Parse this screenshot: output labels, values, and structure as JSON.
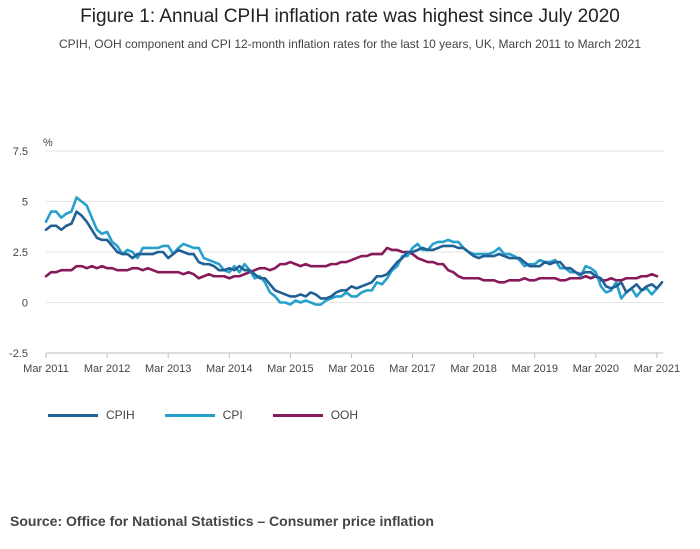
{
  "header": {
    "title": "Figure 1: Annual CPIH inflation rate was highest since July 2020",
    "subtitle": "CPIH, OOH component and CPI 12-month inflation rates for the last 10 years, UK, March 2011 to March 2021"
  },
  "footer": {
    "source": "Source: Office for National Statistics – Consumer price inflation"
  },
  "chart_data": {
    "type": "line",
    "unit_label": "%",
    "ylim": [
      -2.5,
      7.5
    ],
    "y_ticks": [
      -2.5,
      0,
      2.5,
      5,
      7.5
    ],
    "y_tick_labels": [
      "-2.5",
      "0",
      "2.5",
      "5",
      "7.5"
    ],
    "x_tick_labels": [
      "Mar 2011",
      "Mar 2012",
      "Mar 2013",
      "Mar 2014",
      "Mar 2015",
      "Mar 2016",
      "Mar 2017",
      "Mar 2018",
      "Mar 2019",
      "Mar 2020",
      "Mar 2021"
    ],
    "grid": true,
    "legend_position": "bottom-left",
    "series": [
      {
        "name": "CPIH",
        "color": "#206095",
        "values": [
          3.6,
          3.8,
          3.8,
          3.6,
          3.8,
          3.9,
          4.5,
          4.3,
          4.0,
          3.6,
          3.2,
          3.1,
          3.1,
          2.8,
          2.5,
          2.4,
          2.4,
          2.2,
          2.4,
          2.4,
          2.4,
          2.4,
          2.5,
          2.5,
          2.2,
          2.4,
          2.6,
          2.5,
          2.4,
          2.4,
          2.0,
          1.9,
          1.9,
          1.8,
          1.6,
          1.6,
          1.7,
          1.6,
          1.8,
          1.6,
          1.6,
          1.4,
          1.2,
          1.2,
          0.9,
          0.6,
          0.5,
          0.4,
          0.3,
          0.3,
          0.4,
          0.3,
          0.5,
          0.4,
          0.2,
          0.2,
          0.3,
          0.5,
          0.6,
          0.6,
          0.8,
          0.7,
          0.8,
          0.9,
          1.0,
          1.3,
          1.3,
          1.4,
          1.7,
          2.0,
          2.2,
          2.5,
          2.5,
          2.6,
          2.7,
          2.6,
          2.6,
          2.7,
          2.8,
          2.8,
          2.8,
          2.7,
          2.7,
          2.5,
          2.3,
          2.2,
          2.3,
          2.3,
          2.3,
          2.4,
          2.3,
          2.2,
          2.2,
          2.2,
          2.0,
          1.8,
          1.8,
          1.8,
          2.0,
          1.9,
          2.0,
          2.0,
          1.7,
          1.7,
          1.5,
          1.4,
          1.5,
          1.5,
          1.3,
          1.2,
          0.8,
          0.7,
          0.8,
          1.0,
          0.5,
          0.7,
          0.9,
          0.6,
          0.8,
          0.9,
          0.7,
          1.0
        ]
      },
      {
        "name": "CPI",
        "color": "#27a0cc",
        "values": [
          4.0,
          4.5,
          4.5,
          4.2,
          4.4,
          4.5,
          5.2,
          5.0,
          4.8,
          4.2,
          3.6,
          3.4,
          3.5,
          3.0,
          2.8,
          2.4,
          2.6,
          2.5,
          2.2,
          2.7,
          2.7,
          2.7,
          2.7,
          2.8,
          2.8,
          2.4,
          2.7,
          2.9,
          2.8,
          2.7,
          2.7,
          2.2,
          2.1,
          2.0,
          1.9,
          1.6,
          1.5,
          1.8,
          1.5,
          1.9,
          1.6,
          1.2,
          1.3,
          1.0,
          0.5,
          0.3,
          0.0,
          0.0,
          -0.1,
          0.1,
          0.0,
          0.1,
          0.0,
          -0.1,
          -0.1,
          0.1,
          0.2,
          0.3,
          0.3,
          0.5,
          0.3,
          0.3,
          0.5,
          0.6,
          0.6,
          1.0,
          0.9,
          1.2,
          1.6,
          1.8,
          2.3,
          2.3,
          2.7,
          2.9,
          2.6,
          2.6,
          2.9,
          3.0,
          3.0,
          3.1,
          3.0,
          3.0,
          2.7,
          2.5,
          2.4,
          2.4,
          2.4,
          2.4,
          2.5,
          2.7,
          2.4,
          2.4,
          2.3,
          2.1,
          1.8,
          1.9,
          1.9,
          2.1,
          2.0,
          2.0,
          2.1,
          1.7,
          1.7,
          1.5,
          1.5,
          1.3,
          1.8,
          1.7,
          1.5,
          0.8,
          0.5,
          0.6,
          1.0,
          0.2,
          0.5,
          0.7,
          0.3,
          0.6,
          0.7,
          0.4,
          0.7
        ]
      },
      {
        "name": "OOH",
        "color": "#871a5b",
        "values": [
          1.3,
          1.5,
          1.5,
          1.6,
          1.6,
          1.6,
          1.8,
          1.8,
          1.7,
          1.8,
          1.7,
          1.8,
          1.7,
          1.7,
          1.6,
          1.6,
          1.6,
          1.7,
          1.7,
          1.6,
          1.7,
          1.6,
          1.5,
          1.5,
          1.5,
          1.5,
          1.5,
          1.4,
          1.5,
          1.4,
          1.2,
          1.3,
          1.4,
          1.3,
          1.3,
          1.3,
          1.2,
          1.3,
          1.3,
          1.4,
          1.5,
          1.6,
          1.7,
          1.7,
          1.6,
          1.7,
          1.9,
          1.9,
          2.0,
          1.9,
          1.8,
          1.9,
          1.8,
          1.8,
          1.8,
          1.8,
          1.9,
          1.9,
          2.0,
          2.0,
          2.1,
          2.2,
          2.3,
          2.3,
          2.4,
          2.4,
          2.4,
          2.7,
          2.6,
          2.6,
          2.5,
          2.5,
          2.4,
          2.2,
          2.1,
          2.0,
          2.0,
          1.9,
          1.9,
          1.6,
          1.5,
          1.3,
          1.2,
          1.2,
          1.2,
          1.2,
          1.1,
          1.1,
          1.1,
          1.0,
          1.0,
          1.1,
          1.1,
          1.1,
          1.2,
          1.1,
          1.1,
          1.2,
          1.2,
          1.2,
          1.2,
          1.1,
          1.1,
          1.2,
          1.2,
          1.2,
          1.3,
          1.2,
          1.3,
          1.1,
          1.1,
          1.2,
          1.1,
          1.1,
          1.2,
          1.2,
          1.2,
          1.3,
          1.3,
          1.4,
          1.3
        ]
      }
    ]
  }
}
